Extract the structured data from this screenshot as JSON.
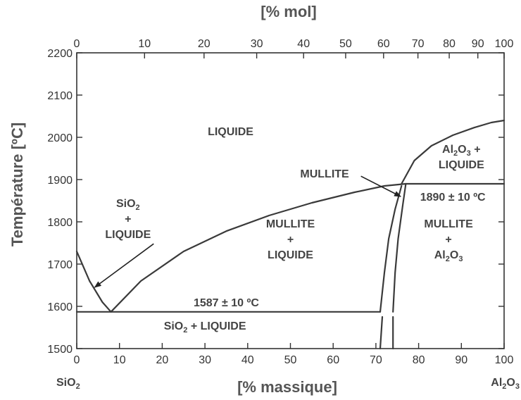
{
  "chart_data": {
    "type": "line",
    "title": "",
    "xlabel": "[% massique]",
    "x2label": "[% mol]",
    "ylabel": "Température [ºC]",
    "xlim": [
      0,
      100
    ],
    "ylim": [
      1500,
      2200
    ],
    "grid": false,
    "x_ticks": [
      0,
      10,
      20,
      30,
      40,
      50,
      60,
      70,
      80,
      90,
      100
    ],
    "x2_ticks": [
      0,
      10,
      20,
      30,
      40,
      50,
      60,
      70,
      80,
      90,
      100
    ],
    "y_ticks": [
      1500,
      1600,
      1700,
      1800,
      1900,
      2000,
      2100,
      2200
    ],
    "endmembers": {
      "left": {
        "base": "SiO",
        "sub": "2"
      },
      "right": {
        "base": "Al",
        "sub1": "2",
        "mid": "O",
        "sub2": "3"
      }
    },
    "series": [
      {
        "x": [
          0,
          3,
          6,
          8
        ],
        "y": [
          1730,
          1660,
          1610,
          1587
        ]
      },
      {
        "x": [
          8,
          15,
          25,
          35,
          45,
          55,
          65,
          72,
          77
        ],
        "y": [
          1587,
          1660,
          1730,
          1778,
          1815,
          1845,
          1870,
          1885,
          1890
        ]
      },
      {
        "x": [
          76,
          79,
          83,
          88,
          93,
          97,
          100
        ],
        "y": [
          1890,
          1945,
          1980,
          2005,
          2023,
          2035,
          2040
        ]
      },
      {
        "x": [
          77,
          100
        ],
        "y": [
          1890,
          1890
        ]
      },
      {
        "x": [
          0,
          71
        ],
        "y": [
          1587,
          1587
        ]
      },
      {
        "x": [
          71,
          72,
          73,
          74.5,
          76
        ],
        "y": [
          1587,
          1680,
          1760,
          1830,
          1885
        ]
      },
      {
        "x": [
          74,
          74.5,
          75.2,
          76.3,
          77
        ],
        "y": [
          1587,
          1680,
          1760,
          1840,
          1890
        ]
      },
      {
        "x": [
          71,
          71.5
        ],
        "y": [
          1500,
          1575
        ]
      },
      {
        "x": [
          74,
          74
        ],
        "y": [
          1500,
          1575
        ]
      }
    ],
    "annotations": [
      {
        "lines": [
          {
            "text": "LIQUIDE"
          }
        ],
        "x": 36,
        "y": 2015
      },
      {
        "lines": [
          {
            "base": "SiO",
            "sub": "2"
          },
          {
            "text": "+"
          },
          {
            "text": "LIQUIDE"
          }
        ],
        "x": 12,
        "y": 1808
      },
      {
        "lines": [
          {
            "text": "MULLITE"
          }
        ],
        "x": 58,
        "y": 1915
      },
      {
        "lines": [
          {
            "text": "MULLITE"
          },
          {
            "text": "+"
          },
          {
            "text": "LIQUIDE"
          }
        ],
        "x": 50,
        "y": 1760
      },
      {
        "lines": [
          {
            "base": "Al",
            "sub1": "2",
            "mid": "O",
            "sub2": "3",
            "suffix": " +"
          },
          {
            "text": "LIQUIDE"
          }
        ],
        "x": 90,
        "y": 1955
      },
      {
        "lines": [
          {
            "text": "1890 ± 10 ºC"
          }
        ],
        "x": 88,
        "y": 1860
      },
      {
        "lines": [
          {
            "text": "MULLITE"
          },
          {
            "text": "+"
          },
          {
            "base": "Al",
            "sub1": "2",
            "mid": "O",
            "sub2": "3"
          }
        ],
        "x": 87,
        "y": 1760
      },
      {
        "lines": [
          {
            "text": "1587 ± 10 ºC"
          }
        ],
        "x": 35,
        "y": 1610
      },
      {
        "lines": [
          {
            "base": "SiO",
            "sub": "2",
            "suffix": " + LIQUIDE"
          }
        ],
        "x": 30,
        "y": 1555
      }
    ],
    "arrows": [
      {
        "from": [
          18,
          1748
        ],
        "to": [
          4.2,
          1645
        ]
      },
      {
        "from": [
          66.5,
          1908
        ],
        "to": [
          75.8,
          1860
        ]
      }
    ]
  }
}
